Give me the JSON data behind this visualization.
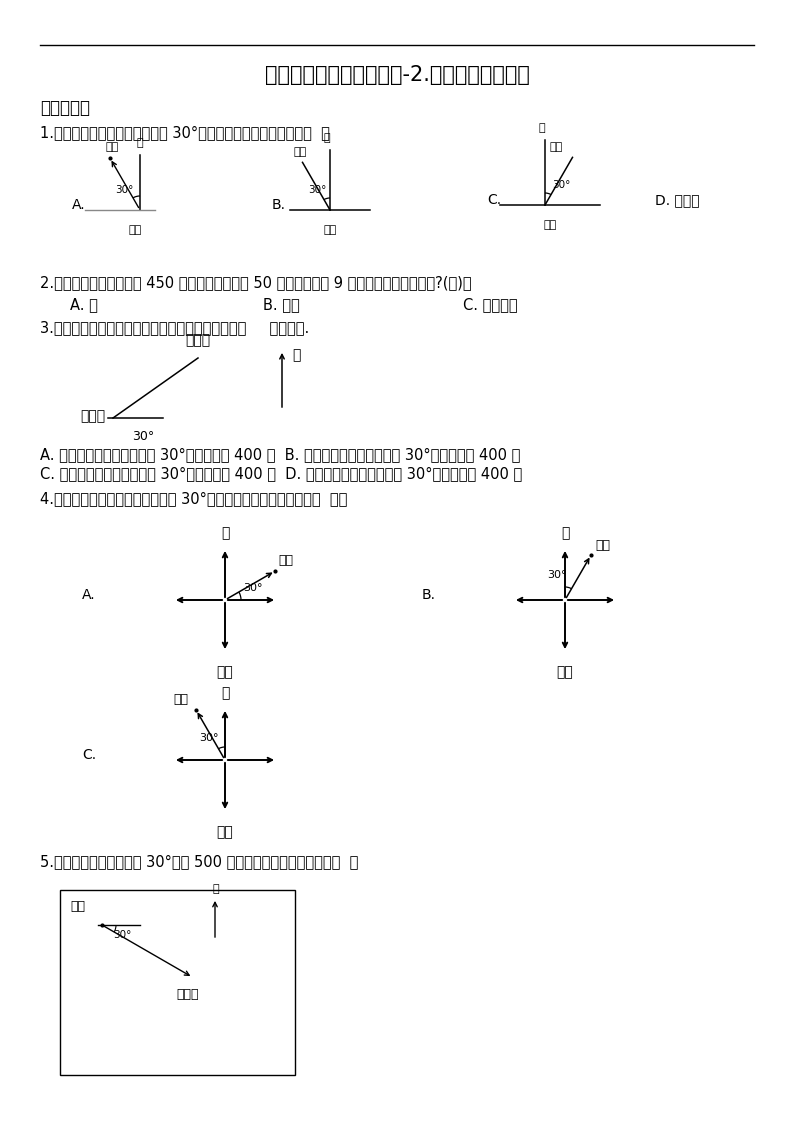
{
  "title": "六年级上册数学单元测试-2.位置和方向（二）",
  "bg_color": "#ffffff",
  "text_color": "#000000",
  "section1": "一、单选题",
  "q1": "1.广场为观察点，学校在北偏西 30°的方向上，下图中正确的是（  ）",
  "q2": "2.学校在小强家的东南面 450 米处，小强每分走 50 米，向东走了 9 分，小强能走到学校吗?(　)。",
  "q2a": "A. 能",
  "q2b": "B. 不能",
  "q2c": "C. 不能确定",
  "q3": "3.如图，小明家与小红家的方向距离描述正确的是（     ）小明家.",
  "q3a": "A. 小明：小红在我家西偏南 30°的方向距离 400 米  B. 小明：小红在我家南偏西 30°的方向距离 400 米",
  "q3b": "C. 小红：小明在我家南偏北 30°的方向距离 400 米  D. 小红：小明在我家北偏东 30°的方向距离 400 米",
  "q4": "4.以广场为观察点，学校在北偏西 30°的方向上，下图中正确的是（  ）。",
  "q5": "5.图书馆在剧院的东偏南 30°方向 500 米处，那么剧院在图书馆的（  ）",
  "bei": "北",
  "xuexiao": "学校",
  "guangchang": "广场",
  "xiaomingjia": "小明家",
  "xiaohongjia": "小红家",
  "juyuan": "剧院",
  "tushuguan": "图书馆",
  "wudaan": "D. 无答案"
}
